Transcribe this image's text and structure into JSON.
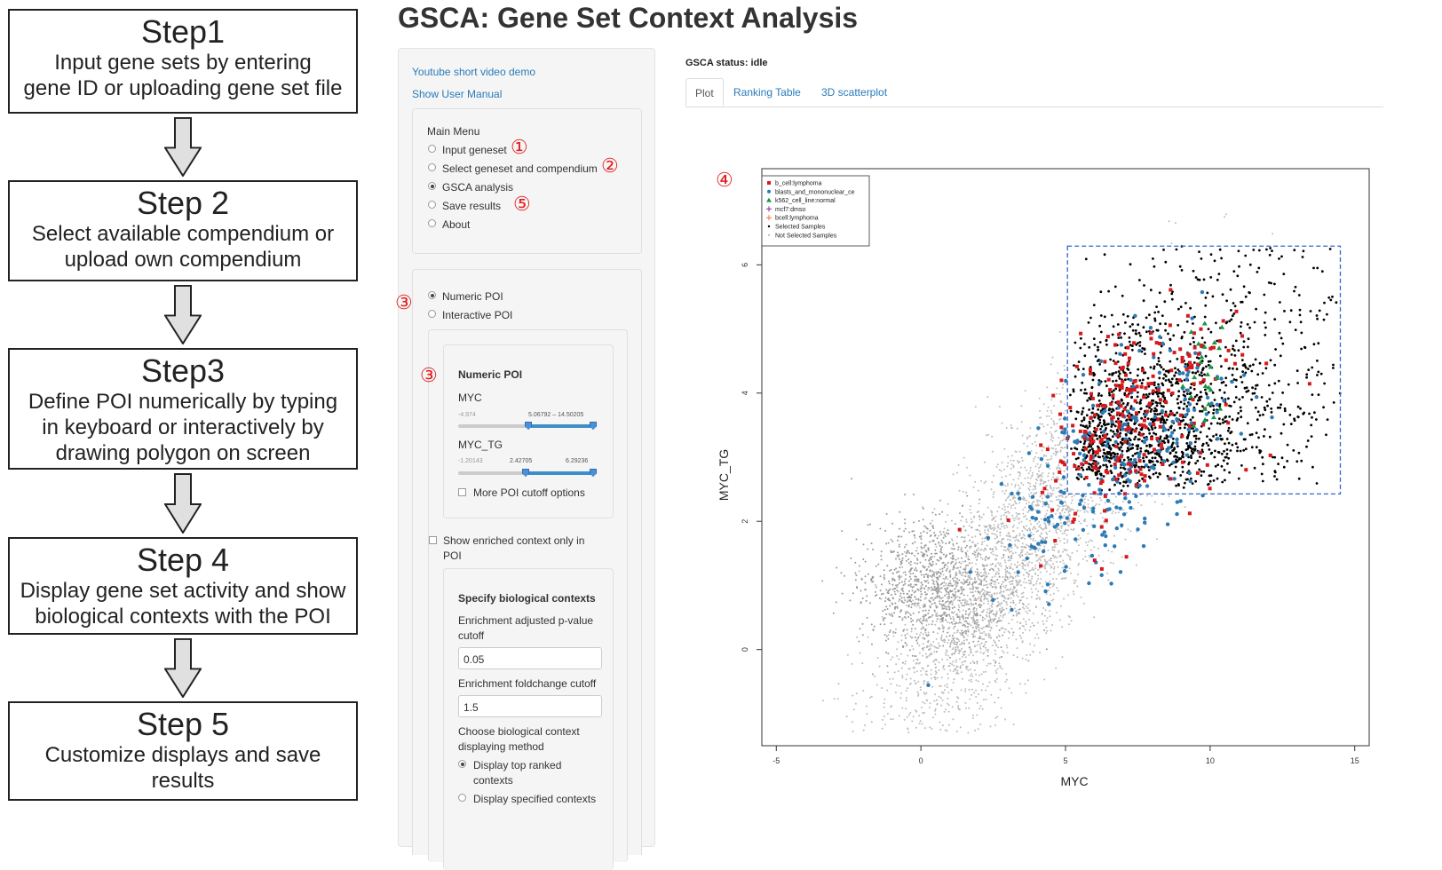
{
  "flow": {
    "steps": [
      {
        "title": "Step1",
        "desc": [
          "Input gene sets by entering",
          "gene ID or uploading gene set file"
        ]
      },
      {
        "title": "Step 2",
        "desc": [
          "Select available compendium or",
          "upload own compendium"
        ]
      },
      {
        "title": "Step3",
        "desc": [
          "Define POI numerically by typing",
          "in keyboard or interactively by",
          "drawing polygon on screen"
        ]
      },
      {
        "title": "Step 4",
        "desc": [
          "Display gene set activity and show",
          "biological contexts with the POI"
        ]
      },
      {
        "title": "Step 5",
        "desc": [
          "Customize displays and save",
          "results"
        ]
      }
    ]
  },
  "app": {
    "title": "GSCA: Gene Set Context Analysis",
    "status": "GSCA status: idle"
  },
  "sidebar": {
    "links": [
      "Youtube short video demo",
      "Show User Manual"
    ],
    "main_menu_label": "Main Menu",
    "menu_items": [
      {
        "label": "Input geneset",
        "selected": false
      },
      {
        "label": "Select geneset and compendium",
        "selected": false
      },
      {
        "label": "GSCA analysis",
        "selected": true
      },
      {
        "label": "Save results",
        "selected": false
      },
      {
        "label": "About",
        "selected": false
      }
    ],
    "poi_modes": [
      {
        "label": "Numeric POI",
        "selected": true
      },
      {
        "label": "Interactive POI",
        "selected": false
      }
    ],
    "numeric_poi": {
      "heading": "Numeric POI",
      "sliders": [
        {
          "label": "MYC",
          "min": "-4.974",
          "range": "5.06792 – 14.50205",
          "low_frac": 0.52,
          "high_frac": 1.0
        },
        {
          "label": "MYC_TG",
          "min": "-1.20143",
          "low": "2.42705",
          "high": "6.29236",
          "low_frac": 0.5,
          "high_frac": 1.0
        }
      ],
      "more_options": "More POI cutoff options"
    },
    "enriched_only": [
      "Show enriched context only in",
      "POI"
    ],
    "bio_contexts": {
      "heading": "Specify biological contexts",
      "pvalue_label": [
        "Enrichment adjusted p-value",
        "cutoff"
      ],
      "pvalue_value": "0.05",
      "foldchange_label": "Enrichment foldchange cutoff",
      "foldchange_value": "1.5",
      "method_label": [
        "Choose biological context",
        "displaying method"
      ],
      "methods": [
        {
          "label": [
            "Display top ranked",
            "contexts"
          ],
          "selected": true
        },
        {
          "label": [
            "Display specified contexts"
          ],
          "selected": false
        }
      ]
    }
  },
  "tabs": [
    {
      "label": "Plot",
      "active": true
    },
    {
      "label": "Ranking Table",
      "active": false
    },
    {
      "label": "3D scatterplot",
      "active": false
    }
  ],
  "annotations": {
    "one": "①",
    "two": "②",
    "three": "③",
    "four": "④",
    "five": "⑤"
  },
  "colors": {
    "accent": "#2a7ab8",
    "annotation": "#e21d1d",
    "b_cell": "#d7191c",
    "blasts": "#2c7bb6",
    "k562": "#1a9641",
    "mcf7": "#7b3294",
    "bcell": "#f46d43",
    "selected": "#000000",
    "not_selected": "#bdbdbd",
    "poi_box": "#3366cc"
  },
  "chart_data": {
    "type": "scatter",
    "xlabel": "MYC",
    "ylabel": "MYC_TG",
    "xlim": [
      -5.5,
      15.5
    ],
    "ylim": [
      -1.5,
      7.5
    ],
    "xticks": [
      "-5",
      "0",
      "5",
      "10",
      "15"
    ],
    "yticks": [
      "0",
      "2",
      "4",
      "6"
    ],
    "xtick_values": [
      -5,
      0,
      5,
      10,
      15
    ],
    "ytick_values": [
      0,
      2,
      4,
      6
    ],
    "poi_box": {
      "x": [
        5.06792,
        14.50205
      ],
      "y": [
        2.42705,
        6.29236
      ]
    },
    "legend": [
      {
        "label": "b_cell:lymphoma",
        "color": "#d7191c",
        "shape": "square"
      },
      {
        "label": "blasts_and_mononuclear_ce",
        "color": "#2c7bb6",
        "shape": "circle"
      },
      {
        "label": "k562_cell_line:normal",
        "color": "#1a9641",
        "shape": "triangle"
      },
      {
        "label": "mcf7:dmso",
        "color": "#7b3294",
        "shape": "plus"
      },
      {
        "label": "bcell:lymphoma",
        "color": "#f46d43",
        "shape": "plus"
      },
      {
        "label": "Selected Samples",
        "color": "#000000",
        "shape": "dot"
      },
      {
        "label": "Not Selected Samples",
        "color": "#bdbdbd",
        "shape": "dot"
      }
    ],
    "series": [
      {
        "name": "Not Selected Samples",
        "center": [
          3.5,
          1.6
        ],
        "spread": [
          2.6,
          1.1
        ]
      },
      {
        "name": "Selected Samples",
        "x_range": [
          5.1,
          14.5
        ],
        "y_range": [
          2.43,
          6.3
        ]
      },
      {
        "name": "b_cell:lymphoma",
        "center": [
          7.5,
          3.4
        ],
        "spread": [
          2.2,
          0.8
        ]
      },
      {
        "name": "blasts_and_mononuclear_ce",
        "center": [
          6.8,
          2.8
        ],
        "spread": [
          2.4,
          0.9
        ]
      },
      {
        "name": "k562_cell_line:normal",
        "center": [
          9.8,
          4.5
        ],
        "spread": [
          0.5,
          0.5
        ]
      }
    ]
  }
}
